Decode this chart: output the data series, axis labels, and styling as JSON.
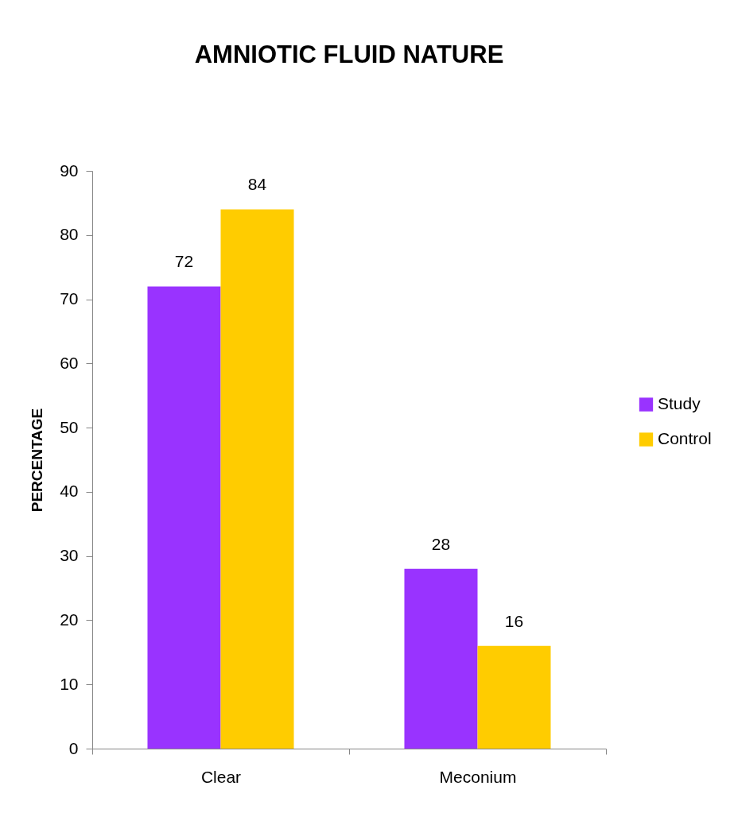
{
  "chart_data": {
    "type": "bar",
    "title": "AMNIOTIC FLUID NATURE",
    "ylabel": "PERCENTAGE",
    "categories": [
      "Clear",
      "Meconium"
    ],
    "series": [
      {
        "name": "Study",
        "color": "#9933ff",
        "values": [
          72,
          28
        ]
      },
      {
        "name": "Control",
        "color": "#ffcc00",
        "values": [
          84,
          16
        ]
      }
    ],
    "ylim": [
      0,
      90
    ],
    "yticks": [
      0,
      10,
      20,
      30,
      40,
      50,
      60,
      70,
      80,
      90
    ],
    "grid": false,
    "legend": "right",
    "data_labels": true
  }
}
